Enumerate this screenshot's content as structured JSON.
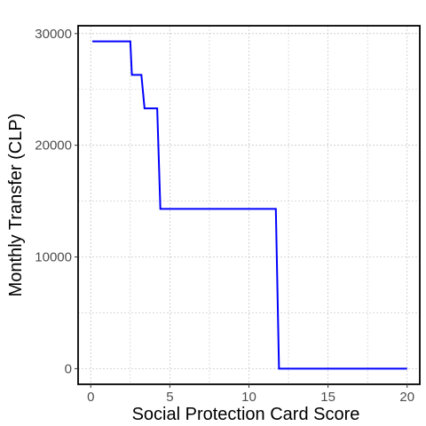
{
  "chart_data": {
    "type": "line",
    "title": "",
    "xlabel": "Social Protection Card Score",
    "ylabel": "Monthly Transfer (CLP)",
    "xlim": [
      -0.8,
      20.8
    ],
    "ylim": [
      -1400,
      30700
    ],
    "x_ticks": [
      0,
      5,
      10,
      15,
      20
    ],
    "x_tick_labels": [
      "0",
      "5",
      "10",
      "15",
      "20"
    ],
    "y_ticks": [
      0,
      10000,
      20000,
      30000
    ],
    "y_tick_labels": [
      "0",
      "10000",
      "20000",
      "30000"
    ],
    "x_minor_grid": [
      2.5,
      7.5,
      12.5,
      17.5
    ],
    "y_minor_grid": [
      5000,
      15000,
      25000
    ],
    "grid": true,
    "legend": "none",
    "series": [
      {
        "color": "#0000ff",
        "x": [
          0.1,
          2.5,
          2.6,
          3.2,
          3.4,
          4.2,
          4.4,
          11.7,
          11.9,
          20.0
        ],
        "y": [
          29300,
          29300,
          26300,
          26300,
          23300,
          23300,
          14300,
          14300,
          0,
          0
        ]
      }
    ]
  }
}
